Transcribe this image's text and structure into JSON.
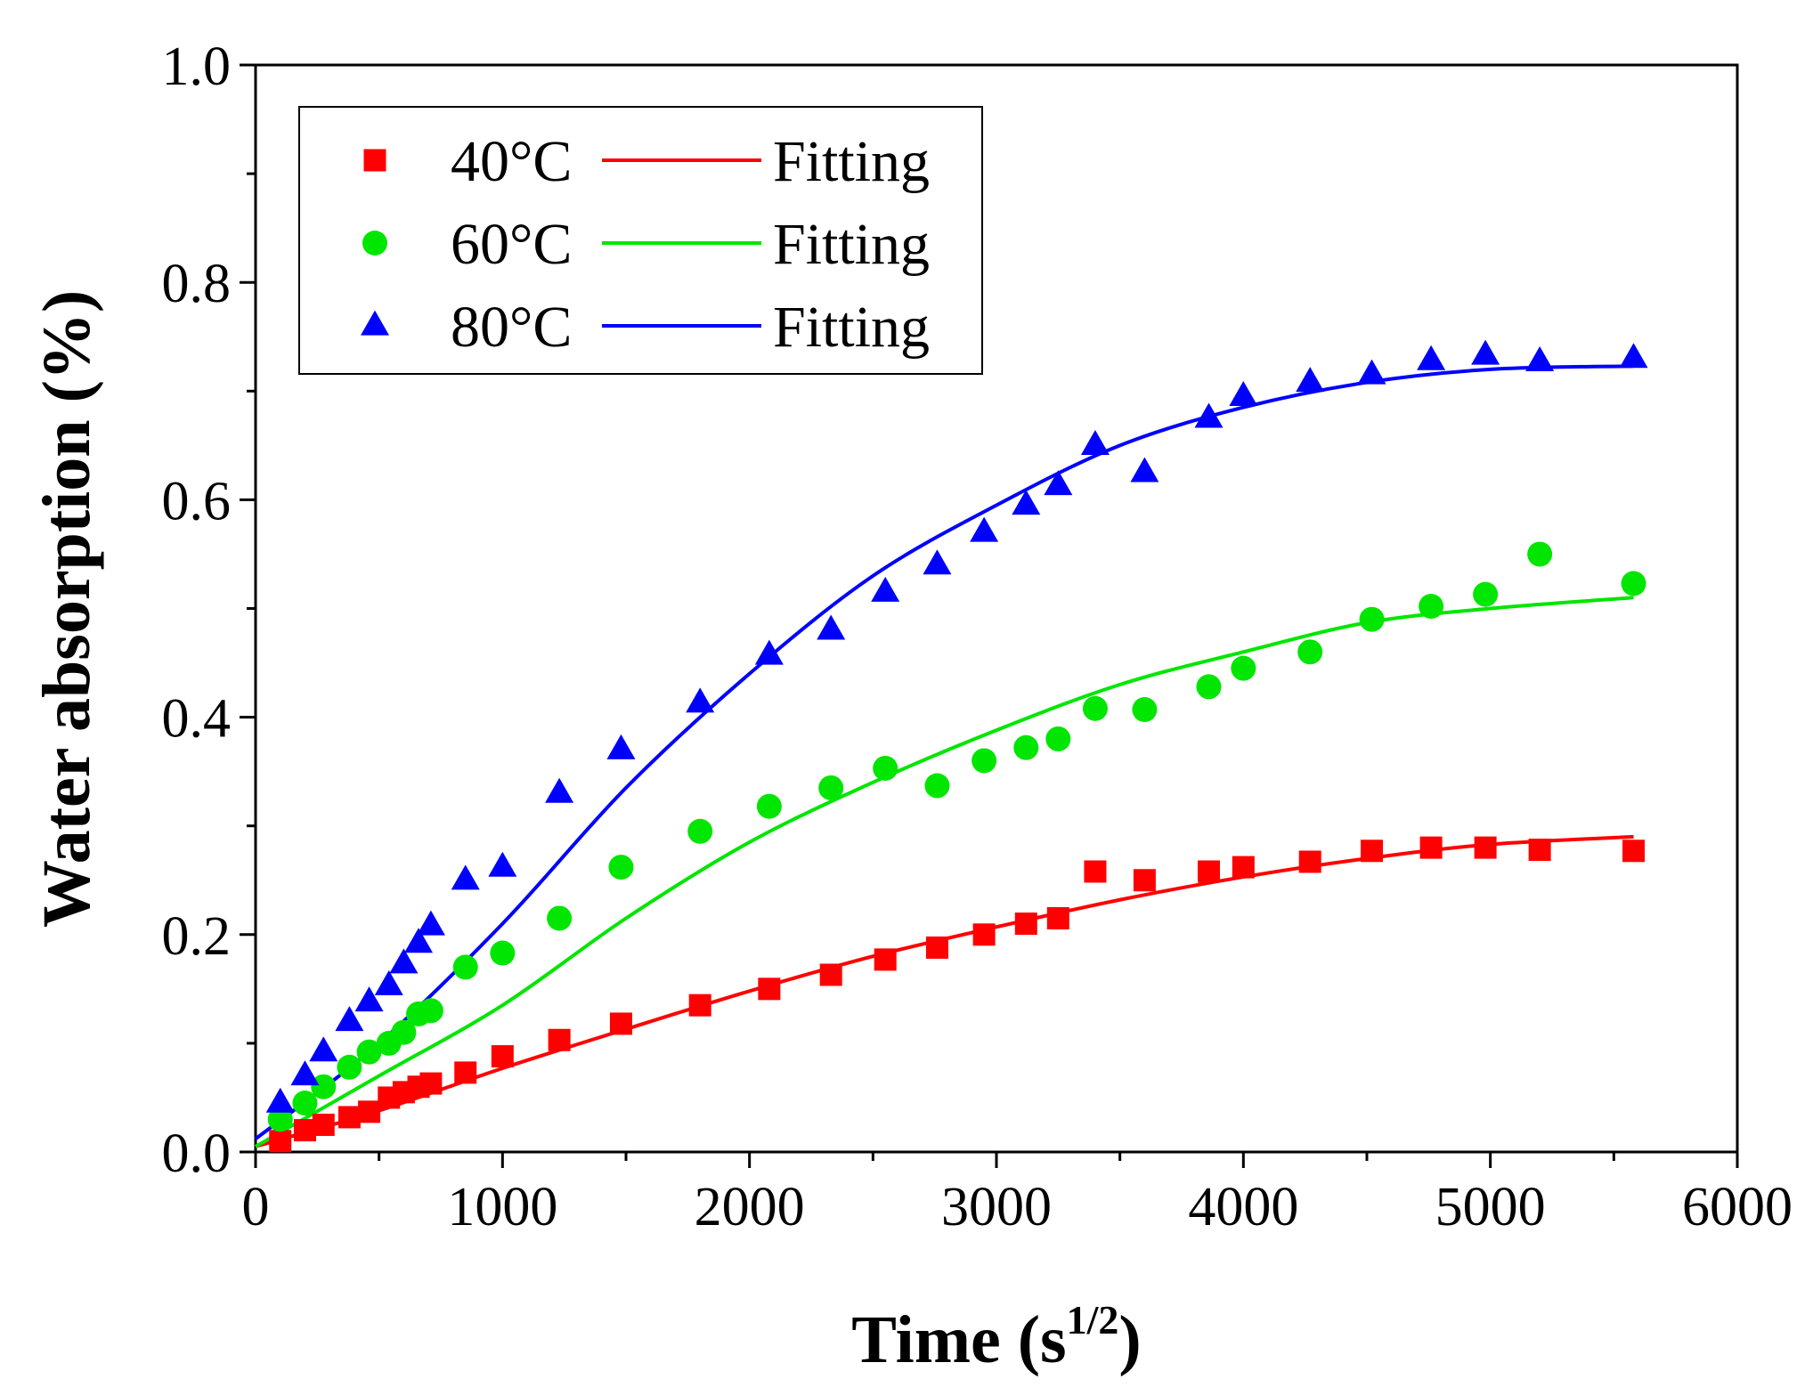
{
  "chart_data": {
    "type": "scatter",
    "title": "",
    "xlabel": "Time (s",
    "xlabel_sup": "1/2",
    "xlabel_close": ")",
    "ylabel": "Water absorption (%)",
    "xlim": [
      0,
      6000
    ],
    "ylim": [
      0.0,
      1.0
    ],
    "x_ticks": [
      0,
      1000,
      2000,
      3000,
      4000,
      5000,
      6000
    ],
    "x_tick_labels": [
      "0",
      "1000",
      "2000",
      "3000",
      "4000",
      "5000",
      "6000"
    ],
    "y_ticks": [
      0.0,
      0.2,
      0.4,
      0.6,
      0.8,
      1.0
    ],
    "y_tick_labels": [
      "0.0",
      "0.2",
      "0.4",
      "0.6",
      "0.8",
      "1.0"
    ],
    "grid": false,
    "legend_position": "top-left",
    "x": [
      100,
      200,
      275,
      380,
      460,
      540,
      600,
      660,
      710,
      850,
      1000,
      1230,
      1480,
      1800,
      2080,
      2330,
      2550,
      2760,
      2950,
      3120,
      3250,
      3400,
      3600,
      3860,
      4000,
      4270,
      4520,
      4760,
      4980,
      5200,
      5580
    ],
    "series": [
      {
        "name": "40°C",
        "marker": "square",
        "color": "#ff0000",
        "values": [
          0.01,
          0.02,
          0.025,
          0.032,
          0.037,
          0.05,
          0.055,
          0.06,
          0.063,
          0.073,
          0.088,
          0.103,
          0.118,
          0.135,
          0.15,
          0.163,
          0.177,
          0.188,
          0.2,
          0.21,
          0.215,
          0.258,
          0.25,
          0.258,
          0.262,
          0.267,
          0.277,
          0.28,
          0.28,
          0.278,
          0.277
        ],
        "fit_label": "Fitting",
        "fit": [
          [
            0,
            0.005
          ],
          [
            500,
            0.038
          ],
          [
            1000,
            0.077
          ],
          [
            1500,
            0.113
          ],
          [
            2000,
            0.148
          ],
          [
            2500,
            0.18
          ],
          [
            3000,
            0.207
          ],
          [
            3500,
            0.232
          ],
          [
            4000,
            0.253
          ],
          [
            4500,
            0.27
          ],
          [
            5000,
            0.283
          ],
          [
            5580,
            0.29
          ]
        ]
      },
      {
        "name": "60°C",
        "marker": "circle",
        "color": "#00e600",
        "values": [
          0.03,
          0.045,
          0.06,
          0.078,
          0.092,
          0.1,
          0.11,
          0.127,
          0.13,
          0.17,
          0.183,
          0.215,
          0.262,
          0.295,
          0.318,
          0.335,
          0.353,
          0.337,
          0.36,
          0.372,
          0.38,
          0.408,
          0.407,
          0.428,
          0.445,
          0.46,
          0.49,
          0.502,
          0.513,
          0.55,
          0.523
        ],
        "fit_label": "Fitting",
        "fit": [
          [
            0,
            0.005
          ],
          [
            500,
            0.07
          ],
          [
            1000,
            0.135
          ],
          [
            1500,
            0.215
          ],
          [
            2000,
            0.285
          ],
          [
            2500,
            0.34
          ],
          [
            3000,
            0.388
          ],
          [
            3500,
            0.43
          ],
          [
            4000,
            0.46
          ],
          [
            4500,
            0.487
          ],
          [
            5000,
            0.5
          ],
          [
            5580,
            0.51
          ]
        ]
      },
      {
        "name": "80°C",
        "marker": "triangle",
        "color": "#0000ff",
        "values": [
          0.045,
          0.07,
          0.092,
          0.12,
          0.138,
          0.153,
          0.173,
          0.192,
          0.208,
          0.25,
          0.262,
          0.33,
          0.37,
          0.413,
          0.457,
          0.48,
          0.515,
          0.54,
          0.57,
          0.595,
          0.613,
          0.65,
          0.625,
          0.675,
          0.695,
          0.708,
          0.715,
          0.728,
          0.733,
          0.727,
          0.73
        ],
        "fit_label": "Fitting",
        "fit": [
          [
            0,
            0.012
          ],
          [
            500,
            0.1
          ],
          [
            1000,
            0.21
          ],
          [
            1500,
            0.335
          ],
          [
            2000,
            0.44
          ],
          [
            2500,
            0.53
          ],
          [
            3000,
            0.595
          ],
          [
            3500,
            0.65
          ],
          [
            4000,
            0.685
          ],
          [
            4500,
            0.708
          ],
          [
            5000,
            0.72
          ],
          [
            5580,
            0.723
          ]
        ]
      }
    ]
  }
}
